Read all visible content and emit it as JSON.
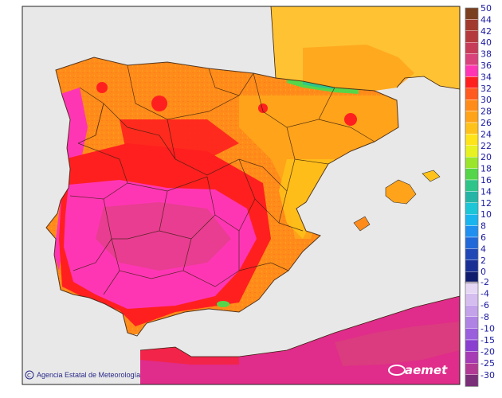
{
  "legend": {
    "positive": [
      {
        "label": "50",
        "color": "#7a3f1f"
      },
      {
        "label": "44",
        "color": "#a2392d"
      },
      {
        "label": "42",
        "color": "#b53a3e"
      },
      {
        "label": "40",
        "color": "#c73c59"
      },
      {
        "label": "38",
        "color": "#d9427a"
      },
      {
        "label": "36",
        "color": "#ff36b4"
      },
      {
        "label": "34",
        "color": "#ff1f1f"
      },
      {
        "label": "32",
        "color": "#ff5a1f"
      },
      {
        "label": "30",
        "color": "#ff8c1a"
      },
      {
        "label": "28",
        "color": "#ffa31a"
      },
      {
        "label": "26",
        "color": "#ffc21a"
      },
      {
        "label": "24",
        "color": "#ffe41a"
      },
      {
        "label": "22",
        "color": "#e8f220"
      },
      {
        "label": "20",
        "color": "#9be52c"
      },
      {
        "label": "18",
        "color": "#55d64a"
      },
      {
        "label": "16",
        "color": "#2fc58a"
      },
      {
        "label": "14",
        "color": "#24b5a6"
      },
      {
        "label": "12",
        "color": "#1cc6d6"
      },
      {
        "label": "10",
        "color": "#19b5ee"
      },
      {
        "label": "8",
        "color": "#1f8ff0"
      },
      {
        "label": "6",
        "color": "#2168d8"
      },
      {
        "label": "4",
        "color": "#1f48b6"
      },
      {
        "label": "2",
        "color": "#1a2f94"
      },
      {
        "label": "0",
        "color": "#101c6e"
      }
    ],
    "negative": [
      {
        "label": "-2",
        "color": "#e6d7f5"
      },
      {
        "label": "-4",
        "color": "#d5bdf0"
      },
      {
        "label": "-6",
        "color": "#c3a2ea"
      },
      {
        "label": "-8",
        "color": "#af83e4"
      },
      {
        "label": "-10",
        "color": "#9a5fdc"
      },
      {
        "label": "-15",
        "color": "#8a3fd0"
      },
      {
        "label": "-20",
        "color": "#a63bb5"
      },
      {
        "label": "-25",
        "color": "#b23a94"
      },
      {
        "label": "-30",
        "color": "#7a2f78"
      }
    ]
  },
  "credit": {
    "text": "Agencia Estatal de Meteorología"
  },
  "logo": {
    "text": "aemet"
  },
  "colors": {
    "sea": "#e8e8e8",
    "france": "#ffc233",
    "africa_base": "#e02c8a"
  }
}
